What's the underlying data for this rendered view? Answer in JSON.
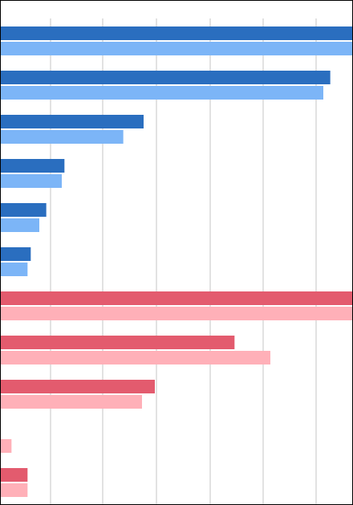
{
  "chart_data": {
    "type": "bar",
    "orientation": "horizontal",
    "title": "",
    "xlabel": "",
    "ylabel": "",
    "xlim": [
      0,
      66
    ],
    "grid": true,
    "legend": "none",
    "groups": [
      {
        "name": "",
        "colors": [
          "#2a6ebf",
          "#7cb5f7"
        ],
        "rows": [
          {
            "values": [
              66,
              66
            ]
          },
          {
            "values": [
              61.6,
              60.3
            ]
          },
          {
            "values": [
              26.7,
              22.9
            ]
          },
          {
            "values": [
              11.9,
              11.4
            ]
          },
          {
            "values": [
              8.5,
              7.2
            ]
          },
          {
            "values": [
              5.6,
              5.0
            ]
          }
        ]
      },
      {
        "name": "",
        "colors": [
          "#e35b6e",
          "#ffb0b8"
        ],
        "rows": [
          {
            "values": [
              66,
              66
            ]
          },
          {
            "values": [
              43.7,
              50.4
            ]
          },
          {
            "values": [
              28.8,
              26.4
            ]
          },
          {
            "values": [
              0,
              2.0
            ]
          },
          {
            "values": [
              5.0,
              5.0
            ]
          }
        ]
      }
    ]
  }
}
